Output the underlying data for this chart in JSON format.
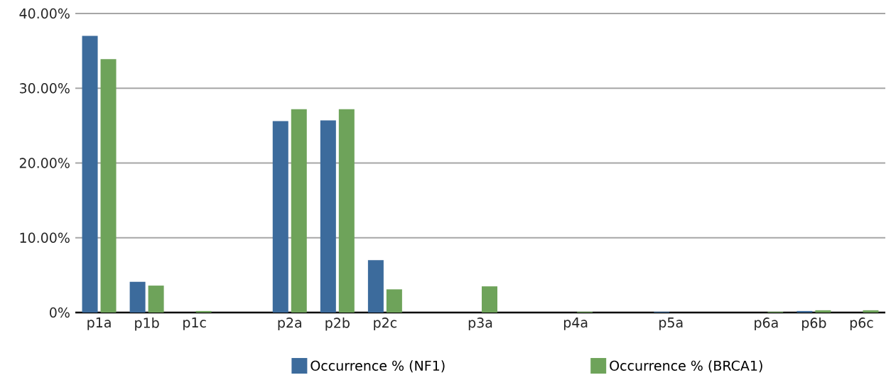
{
  "chart_data": {
    "type": "bar",
    "categories": [
      "p1a",
      "p1b",
      "p1c",
      null,
      "p2a",
      "p2b",
      "p2c",
      null,
      "p3a",
      null,
      "p4a",
      null,
      "p5a",
      null,
      "p6a",
      "p6b",
      "p6c"
    ],
    "series": [
      {
        "name": "Occurrence % (NF1)",
        "color": "#3c6b9c",
        "values": [
          37.0,
          4.1,
          0,
          null,
          25.6,
          25.7,
          7.0,
          null,
          0,
          null,
          0,
          null,
          0.1,
          null,
          0,
          0.2,
          0
        ]
      },
      {
        "name": "Occurrence % (BRCA1)",
        "color": "#6ea35a",
        "values": [
          33.9,
          3.6,
          0.2,
          null,
          27.2,
          27.2,
          3.1,
          null,
          3.5,
          null,
          0.1,
          null,
          0,
          null,
          0.1,
          0.3,
          0.3
        ]
      }
    ],
    "ylim": [
      0,
      40
    ],
    "yticks": [
      {
        "value": 0,
        "label": "0%"
      },
      {
        "value": 10,
        "label": "10.00%"
      },
      {
        "value": 20,
        "label": "20.00%"
      },
      {
        "value": 30,
        "label": "30.00%"
      },
      {
        "value": 40,
        "label": "40.00%"
      }
    ],
    "grid": "y",
    "legend": "bottom"
  }
}
